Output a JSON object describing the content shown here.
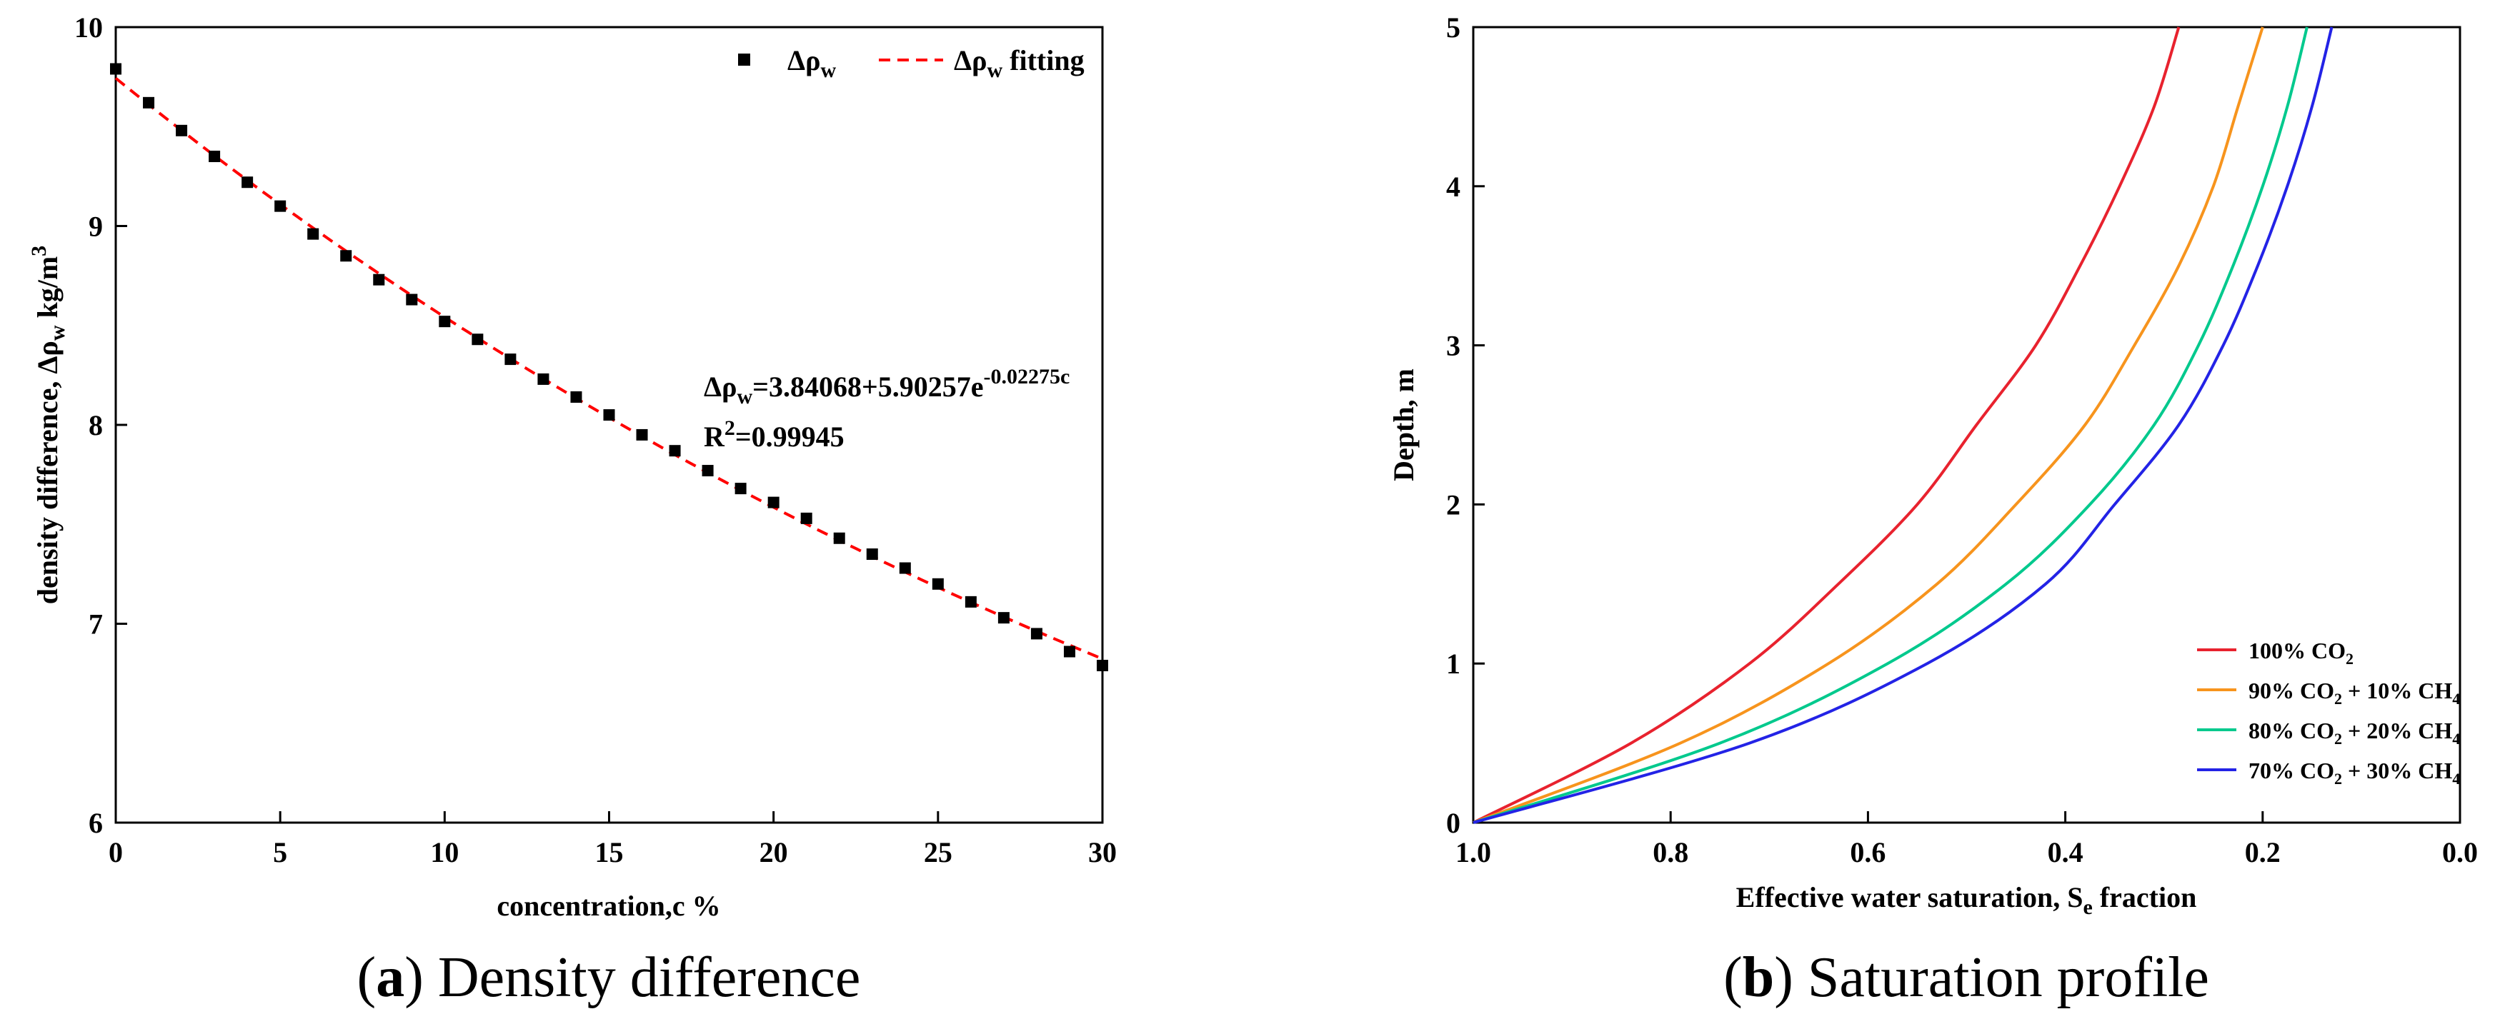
{
  "chart_data": [
    {
      "type": "scatter",
      "caption_letter": "a",
      "caption_text": "Density difference",
      "xlabel": "concentration,c %",
      "ylabel_main": "density difference, Δρ",
      "ylabel_sub": "w",
      "ylabel_unit": " kg/m",
      "ylabel_sup": "3",
      "xlim": [
        0,
        30
      ],
      "ylim": [
        6,
        10
      ],
      "xticks": [
        "0",
        "5",
        "10",
        "15",
        "20",
        "25",
        "30"
      ],
      "yticks": [
        "6",
        "7",
        "8",
        "9",
        "10"
      ],
      "series": [
        {
          "name": "Δρw",
          "legend_main": "Δρ",
          "legend_sub": "w",
          "style": "square-markers",
          "color": "#000000",
          "x": [
            0,
            1,
            2,
            3,
            4,
            5,
            6,
            7,
            8,
            9,
            10,
            11,
            12,
            13,
            14,
            15,
            16,
            17,
            18,
            19,
            20,
            21,
            22,
            23,
            24,
            25,
            26,
            27,
            28,
            29,
            30
          ],
          "y": [
            9.79,
            9.62,
            9.48,
            9.35,
            9.22,
            9.1,
            8.96,
            8.85,
            8.73,
            8.63,
            8.52,
            8.43,
            8.33,
            8.23,
            8.14,
            8.05,
            7.95,
            7.87,
            7.77,
            7.68,
            7.61,
            7.53,
            7.43,
            7.35,
            7.28,
            7.2,
            7.11,
            7.03,
            6.95,
            6.86,
            6.79
          ]
        },
        {
          "name": "Δρw fitting",
          "legend_main": "Δρ",
          "legend_sub": "w",
          "legend_tail": " fitting",
          "style": "dashed-line",
          "color": "#ff0000",
          "model": {
            "a": 3.84068,
            "b": 5.90257,
            "k": -0.02275
          }
        }
      ],
      "annotation": {
        "eq_main": "Δρ",
        "eq_sub": "w",
        "eq_mid": "=3.84068+5.90257e",
        "eq_sup": "-0.02275c",
        "r2_main": "R",
        "r2_sup": "2",
        "r2_tail": "=0.99945"
      }
    },
    {
      "type": "line",
      "caption_letter": "b",
      "caption_text": "Saturation profile",
      "xlabel_main": "Effective water saturation, S",
      "xlabel_sub": "e",
      "xlabel_tail": " fraction",
      "ylabel": "Depth, m",
      "xlim": [
        1.0,
        0.0
      ],
      "ylim": [
        0,
        5
      ],
      "xticks": [
        "1.0",
        "0.8",
        "0.6",
        "0.4",
        "0.2",
        "0.0"
      ],
      "yticks": [
        "0",
        "1",
        "2",
        "3",
        "4",
        "5"
      ],
      "legend_position": "bottom-right",
      "series": [
        {
          "name": "100% CO2",
          "parts": [
            [
              "100% CO",
              ""
            ],
            [
              "2",
              "sub"
            ]
          ],
          "color": "#e8222e",
          "depth": [
            0,
            0.5,
            1.0,
            1.5,
            2.0,
            2.5,
            3.0,
            3.5,
            4.0,
            4.5,
            5.0
          ],
          "saturation": [
            1.0,
            0.84,
            0.72,
            0.63,
            0.55,
            0.49,
            0.43,
            0.385,
            0.345,
            0.31,
            0.285
          ]
        },
        {
          "name": "90% CO2 + 10% CH4",
          "parts": [
            [
              "90% CO",
              ""
            ],
            [
              "2",
              "sub"
            ],
            [
              " + 10% CH",
              ""
            ],
            [
              "4",
              "sub"
            ]
          ],
          "color": "#f7941d",
          "depth": [
            0,
            0.5,
            1.0,
            1.5,
            2.0,
            2.5,
            3.0,
            3.5,
            4.0,
            4.5,
            5.0
          ],
          "saturation": [
            1.0,
            0.79,
            0.64,
            0.53,
            0.45,
            0.38,
            0.33,
            0.285,
            0.25,
            0.225,
            0.2
          ]
        },
        {
          "name": "80% CO2 + 20% CH4",
          "parts": [
            [
              "80% CO",
              ""
            ],
            [
              "2",
              "sub"
            ],
            [
              " + 20% CH",
              ""
            ],
            [
              "4",
              "sub"
            ]
          ],
          "color": "#00c98d",
          "depth": [
            0,
            0.5,
            1.0,
            1.5,
            2.0,
            2.5,
            3.0,
            3.5,
            4.0,
            4.5,
            5.0
          ],
          "saturation": [
            1.0,
            0.75,
            0.58,
            0.46,
            0.375,
            0.31,
            0.265,
            0.23,
            0.2,
            0.175,
            0.155
          ]
        },
        {
          "name": "70% CO2 + 30% CH4",
          "parts": [
            [
              "70% CO",
              ""
            ],
            [
              "2",
              "sub"
            ],
            [
              " + 30% CH",
              ""
            ],
            [
              "4",
              "sub"
            ]
          ],
          "color": "#2323e6",
          "depth": [
            0,
            0.5,
            1.0,
            1.5,
            2.0,
            2.5,
            3.0,
            3.5,
            4.0,
            4.5,
            5.0
          ],
          "saturation": [
            1.0,
            0.72,
            0.54,
            0.42,
            0.35,
            0.285,
            0.24,
            0.205,
            0.175,
            0.15,
            0.13
          ]
        }
      ]
    }
  ]
}
